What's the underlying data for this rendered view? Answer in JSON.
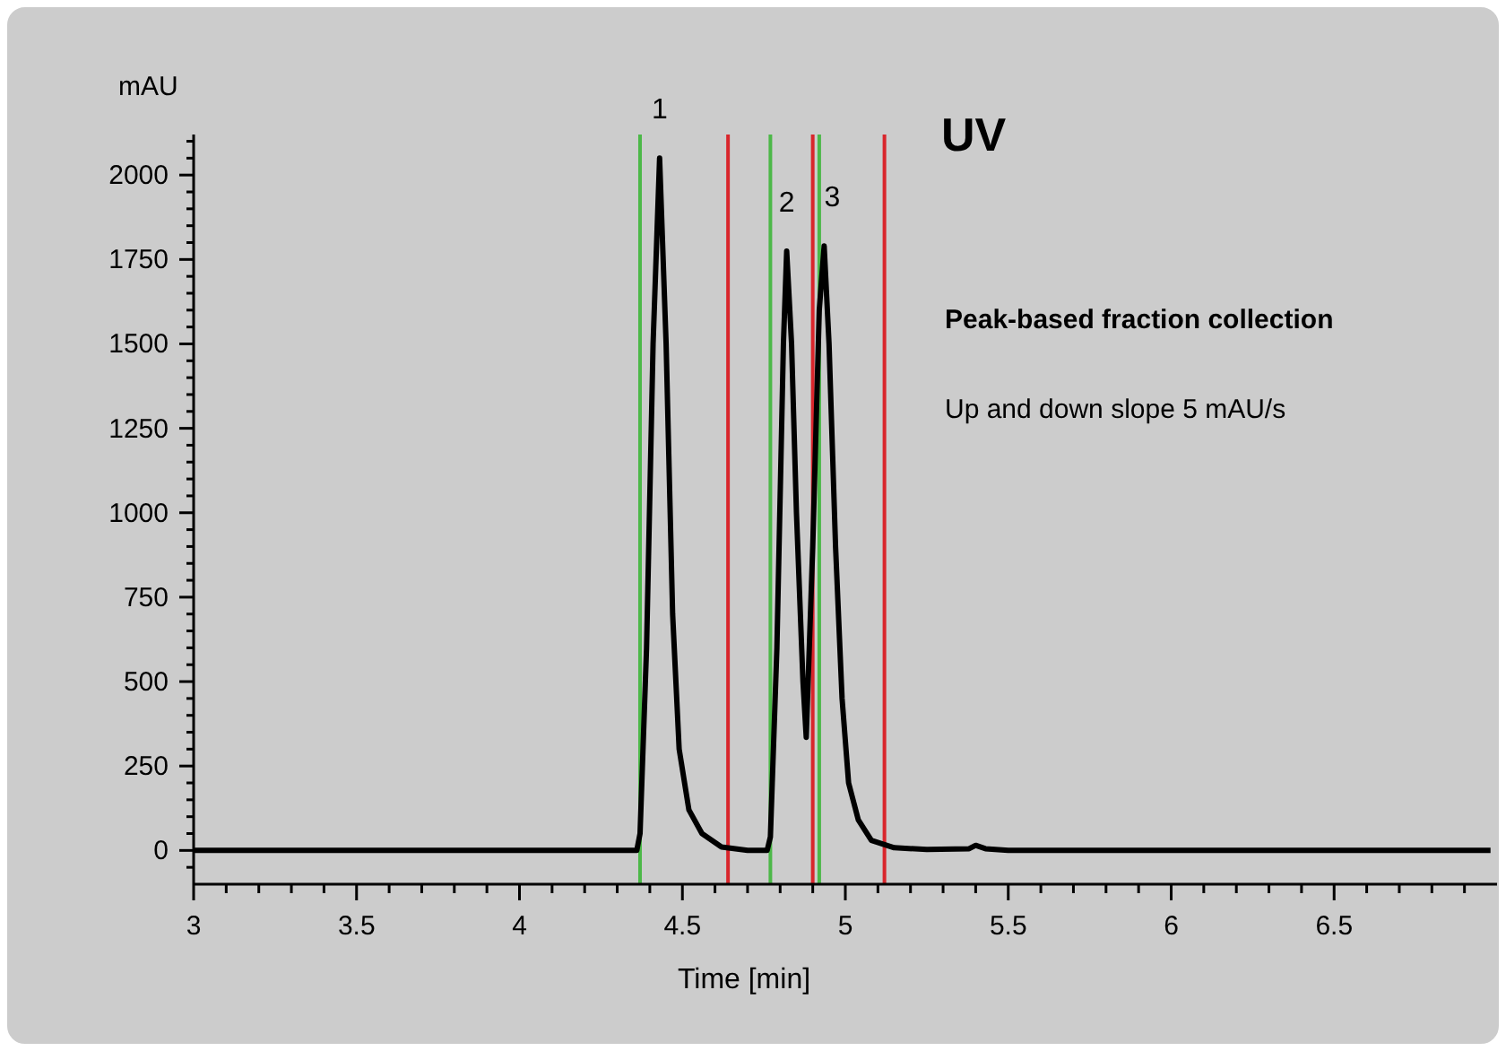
{
  "chart_data": {
    "type": "line",
    "xlabel": "Time [min]",
    "ylabel": "mAU",
    "xlim": [
      3,
      7
    ],
    "ylim": [
      -100,
      2120
    ],
    "xticks": [
      3,
      {
        "value": 3.1,
        "label": null
      },
      {
        "value": 3.2,
        "label": null
      },
      {
        "value": 3.3,
        "label": null
      },
      {
        "value": 3.4,
        "label": null
      },
      3.5,
      {
        "value": 3.6,
        "label": null
      },
      {
        "value": 3.7,
        "label": null
      },
      {
        "value": 3.8,
        "label": null
      },
      {
        "value": 3.9,
        "label": null
      },
      4,
      {
        "value": 4.1,
        "label": null
      },
      {
        "value": 4.2,
        "label": null
      },
      {
        "value": 4.3,
        "label": null
      },
      {
        "value": 4.4,
        "label": null
      },
      4.5,
      {
        "value": 4.6,
        "label": null
      },
      {
        "value": 4.7,
        "label": null
      },
      {
        "value": 4.8,
        "label": null
      },
      {
        "value": 4.9,
        "label": null
      },
      5,
      {
        "value": 5.1,
        "label": null
      },
      {
        "value": 5.2,
        "label": null
      },
      {
        "value": 5.3,
        "label": null
      },
      {
        "value": 5.4,
        "label": null
      },
      5.5,
      {
        "value": 5.6,
        "label": null
      },
      {
        "value": 5.7,
        "label": null
      },
      {
        "value": 5.8,
        "label": null
      },
      {
        "value": 5.9,
        "label": null
      },
      6,
      {
        "value": 6.1,
        "label": null
      },
      {
        "value": 6.2,
        "label": null
      },
      {
        "value": 6.3,
        "label": null
      },
      {
        "value": 6.4,
        "label": null
      },
      6.5,
      {
        "value": 6.6,
        "label": null
      },
      {
        "value": 6.7,
        "label": null
      },
      {
        "value": 6.8,
        "label": null
      },
      {
        "value": 6.9,
        "label": null
      }
    ],
    "yticks": [
      {
        "value": -50,
        "label": null
      },
      0,
      {
        "value": 50,
        "label": null
      },
      {
        "value": 100,
        "label": null
      },
      {
        "value": 150,
        "label": null
      },
      {
        "value": 200,
        "label": null
      },
      250,
      {
        "value": 300,
        "label": null
      },
      {
        "value": 350,
        "label": null
      },
      {
        "value": 400,
        "label": null
      },
      {
        "value": 450,
        "label": null
      },
      500,
      {
        "value": 550,
        "label": null
      },
      {
        "value": 600,
        "label": null
      },
      {
        "value": 650,
        "label": null
      },
      {
        "value": 700,
        "label": null
      },
      750,
      {
        "value": 800,
        "label": null
      },
      {
        "value": 850,
        "label": null
      },
      {
        "value": 900,
        "label": null
      },
      {
        "value": 950,
        "label": null
      },
      1000,
      {
        "value": 1050,
        "label": null
      },
      {
        "value": 1100,
        "label": null
      },
      {
        "value": 1150,
        "label": null
      },
      {
        "value": 1200,
        "label": null
      },
      1250,
      {
        "value": 1300,
        "label": null
      },
      {
        "value": 1350,
        "label": null
      },
      {
        "value": 1400,
        "label": null
      },
      {
        "value": 1450,
        "label": null
      },
      1500,
      {
        "value": 1550,
        "label": null
      },
      {
        "value": 1600,
        "label": null
      },
      {
        "value": 1650,
        "label": null
      },
      {
        "value": 1700,
        "label": null
      },
      1750,
      {
        "value": 1800,
        "label": null
      },
      {
        "value": 1850,
        "label": null
      },
      {
        "value": 1900,
        "label": null
      },
      {
        "value": 1950,
        "label": null
      },
      2000,
      {
        "value": 2050,
        "label": null
      },
      {
        "value": 2100,
        "label": null
      }
    ],
    "x": [
      3,
      4.36,
      4.37,
      4.39,
      4.41,
      4.43,
      4.45,
      4.47,
      4.49,
      4.52,
      4.56,
      4.62,
      4.7,
      4.76,
      4.77,
      4.79,
      4.81,
      4.82,
      4.835,
      4.85,
      4.87,
      4.88,
      4.9,
      4.92,
      4.935,
      4.95,
      4.97,
      4.99,
      5.01,
      5.04,
      5.08,
      5.15,
      5.25,
      5.38,
      5.4,
      5.43,
      5.5,
      6.98
    ],
    "values": [
      0,
      0,
      50,
      600,
      1500,
      2050,
      1500,
      700,
      300,
      120,
      50,
      10,
      0,
      0,
      40,
      600,
      1500,
      1775,
      1500,
      1000,
      500,
      335,
      900,
      1600,
      1790,
      1500,
      900,
      450,
      200,
      90,
      30,
      8,
      3,
      5,
      15,
      5,
      0,
      0
    ],
    "color": "#000000",
    "marker": "none",
    "line_style": "solid",
    "ref_lines": [
      {
        "axis": "x",
        "value": 4.37,
        "color": "#4cb848"
      },
      {
        "axis": "x",
        "value": 4.64,
        "color": "#d9262c"
      },
      {
        "axis": "x",
        "value": 4.77,
        "color": "#4cb848"
      },
      {
        "axis": "x",
        "value": 4.9,
        "color": "#d9262c"
      },
      {
        "axis": "x",
        "value": 4.92,
        "color": "#4cb848"
      },
      {
        "axis": "x",
        "value": 5.12,
        "color": "#d9262c"
      }
    ],
    "annotations": [
      {
        "text": "1",
        "x": 4.43,
        "y": 2050
      },
      {
        "text": "2",
        "x": 4.82,
        "y": 1775
      },
      {
        "text": "3",
        "x": 4.96,
        "y": 1790
      },
      "UV",
      "Peak-based fraction collection",
      "Up and down slope 5 mAU/s"
    ]
  }
}
